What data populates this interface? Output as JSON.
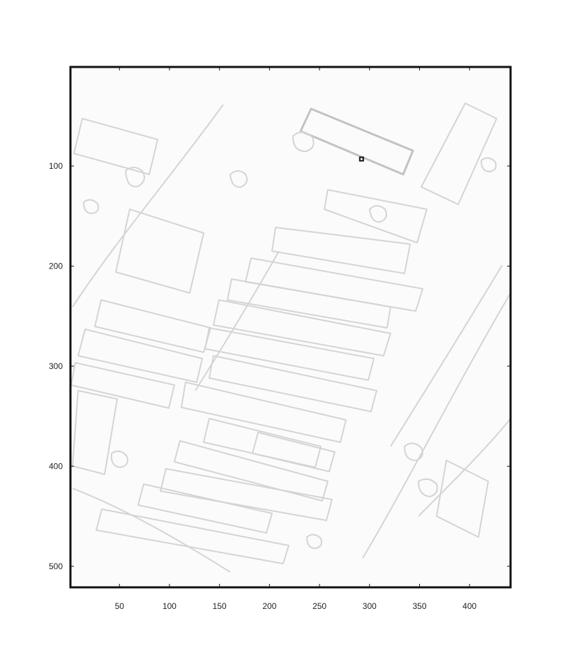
{
  "chart_data": {
    "type": "heatmap",
    "title": "",
    "xlabel": "",
    "ylabel": "",
    "xlim": [
      1,
      441
    ],
    "ylim": [
      521,
      1
    ],
    "x_ticks": [
      50,
      100,
      150,
      200,
      250,
      300,
      350,
      400
    ],
    "y_ticks": [
      100,
      200,
      300,
      400,
      500
    ],
    "x_tick_labels": [
      "50",
      "100",
      "150",
      "200",
      "250",
      "300",
      "350",
      "400"
    ],
    "y_tick_labels": [
      "100",
      "200",
      "300",
      "400",
      "500"
    ],
    "colormap": "gray",
    "grid": false,
    "image_content": "grayscale edge-detected aerial view of buildings",
    "marker": {
      "x": 292,
      "y": 93
    },
    "colors": {
      "background": "#fbfbfb",
      "edges": "#d2d2d2",
      "frame": "#111111"
    }
  }
}
